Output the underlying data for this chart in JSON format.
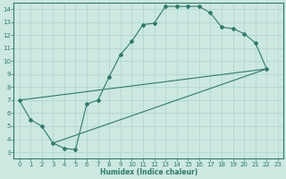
{
  "xlabel": "Humidex (Indice chaleur)",
  "bg_color": "#cce8e0",
  "line_color": "#2d7a6e",
  "grid_color": "#aad4cc",
  "xlim": [
    -0.5,
    23.5
  ],
  "ylim": [
    2.5,
    14.5
  ],
  "xticks": [
    0,
    1,
    2,
    3,
    4,
    5,
    6,
    7,
    8,
    9,
    10,
    11,
    12,
    13,
    14,
    15,
    16,
    17,
    18,
    19,
    20,
    21,
    22,
    23
  ],
  "yticks": [
    3,
    4,
    5,
    6,
    7,
    8,
    9,
    10,
    11,
    12,
    13,
    14
  ],
  "curve_main_x": [
    0,
    1,
    2,
    3,
    4,
    5,
    6,
    7,
    8,
    9,
    10,
    11,
    12,
    13,
    14,
    15,
    16,
    17,
    18,
    19,
    20,
    21,
    22
  ],
  "curve_main_y": [
    7.0,
    5.5,
    5.0,
    3.7,
    3.3,
    3.2,
    6.7,
    7.0,
    8.8,
    10.5,
    11.5,
    12.8,
    12.9,
    14.2,
    14.2,
    14.2,
    14.2,
    13.7,
    12.6,
    12.5,
    12.1,
    11.4,
    9.4
  ],
  "line1_x": [
    0,
    22
  ],
  "line1_y": [
    7.0,
    9.4
  ],
  "line2_x": [
    3,
    22
  ],
  "line2_y": [
    3.7,
    9.4
  ]
}
